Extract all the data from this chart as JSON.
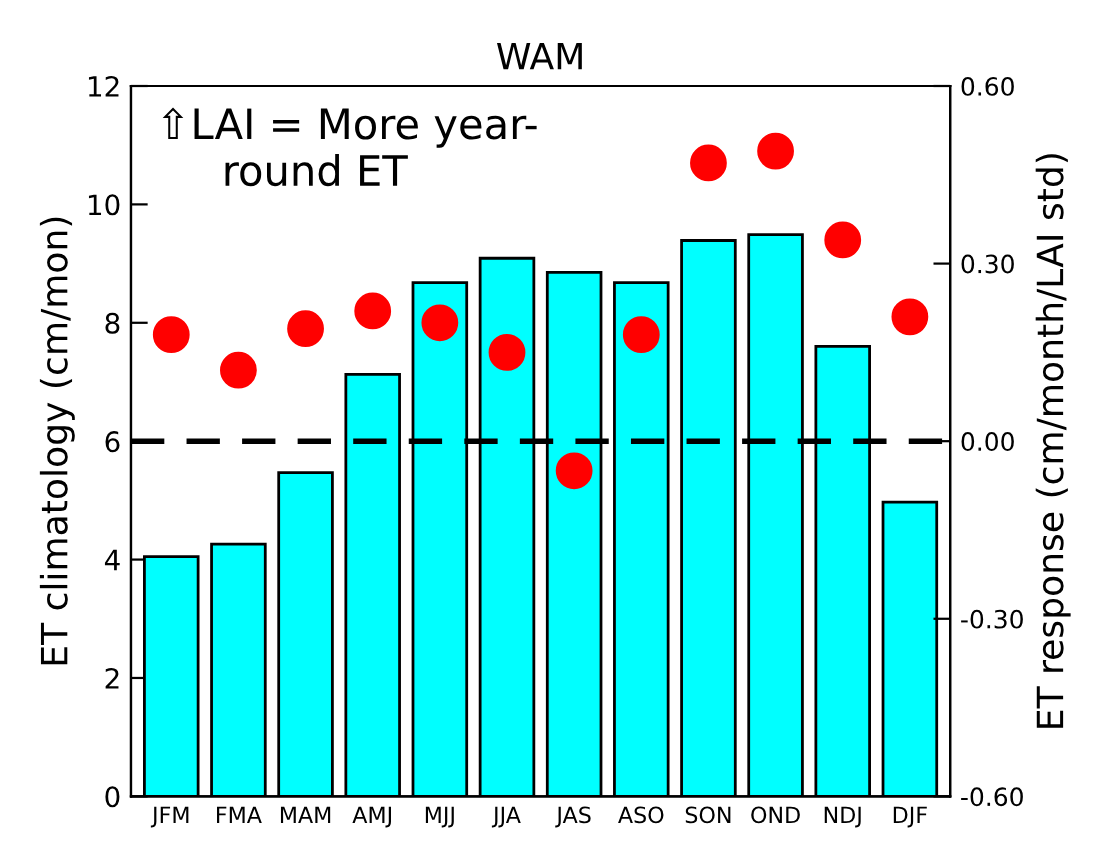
{
  "chart_data": {
    "type": "bar",
    "title": "WAM",
    "ylabel": "ET climatology (cm/mon)",
    "y2label": "ET response (cm/month/LAI std)",
    "categories": [
      "JFM",
      "FMA",
      "MAM",
      "AMJ",
      "MJJ",
      "JJA",
      "JAS",
      "ASO",
      "SON",
      "OND",
      "NDJ",
      "DJF"
    ],
    "series": [
      {
        "color": "#00ffff",
        "values": [
          4.05,
          4.26,
          5.47,
          7.13,
          8.68,
          9.09,
          8.85,
          8.68,
          9.39,
          9.49,
          7.6,
          4.97
        ]
      },
      {
        "type": "scatter",
        "axis": "y2",
        "color": "#ff0000",
        "values": [
          0.18,
          0.12,
          0.19,
          0.22,
          0.2,
          0.15,
          -0.05,
          0.18,
          0.47,
          0.49,
          0.34,
          0.21
        ]
      }
    ],
    "ylim": [
      0,
      12
    ],
    "yticks": [
      0,
      2,
      4,
      6,
      8,
      10,
      12
    ],
    "y2lim": [
      -0.6,
      0.6
    ],
    "y2ticks": [
      {
        "value": -0.6,
        "label": "-0.60"
      },
      {
        "value": -0.3,
        "label": "-0.30"
      },
      {
        "value": 0,
        "label": "0.00"
      },
      {
        "value": 0.3,
        "label": "0.30"
      },
      {
        "value": 0.6,
        "label": "0.60"
      }
    ],
    "ref_lines": [
      {
        "axis": "y2",
        "value": 0,
        "label": null,
        "color": "#000000",
        "line_style": "dashed"
      }
    ],
    "annotations": [
      "⇧LAI = More year-\n     round ET"
    ],
    "marker": "circle",
    "grid": false,
    "legend": false
  }
}
